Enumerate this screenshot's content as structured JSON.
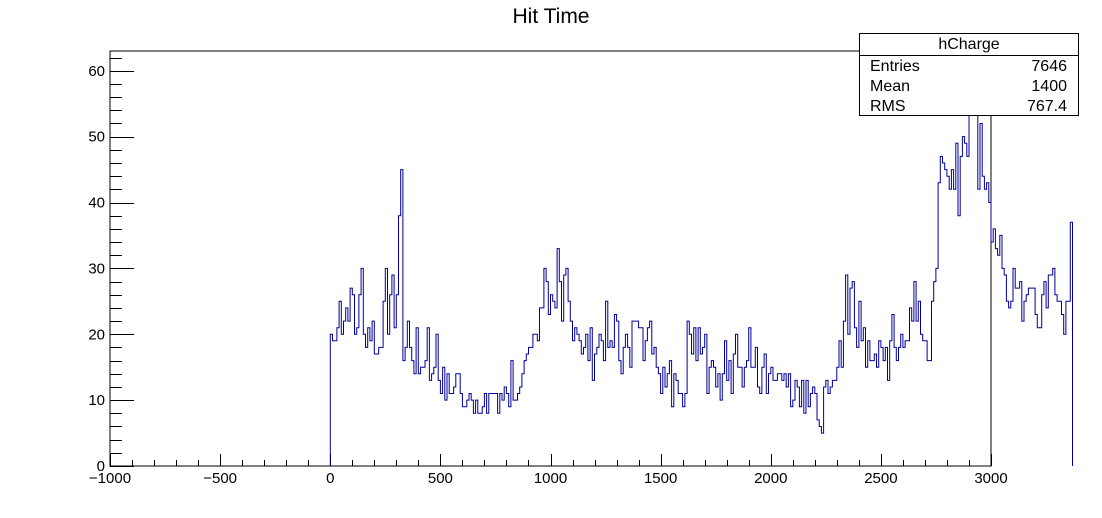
{
  "chart_data": {
    "type": "histogram",
    "title": "Hit Time",
    "xlabel": "",
    "ylabel": "",
    "xlim": [
      -1000,
      3000
    ],
    "ylim": [
      0,
      63
    ],
    "x_ticks": [
      -1000,
      -500,
      0,
      500,
      1000,
      1500,
      2000,
      2500,
      3000
    ],
    "y_ticks": [
      0,
      10,
      20,
      30,
      40,
      50,
      60
    ],
    "bin_width": 10,
    "x_start": 0,
    "series": [
      {
        "color": "#000099",
        "values": [
          20,
          19,
          19,
          21,
          25,
          20,
          22,
          24,
          22,
          27,
          26,
          20,
          21,
          26,
          30,
          20,
          18,
          21,
          19,
          22,
          17,
          17,
          18,
          18,
          25,
          30,
          20,
          26,
          29,
          21,
          26,
          38,
          45,
          16,
          18,
          22,
          18,
          16,
          14,
          21,
          14,
          15,
          15,
          16,
          21,
          13,
          14,
          15,
          20,
          13,
          11,
          15,
          10,
          14,
          11,
          11,
          12,
          14,
          14,
          11,
          9,
          9,
          10,
          11,
          10,
          8,
          10,
          8,
          8,
          9,
          11,
          8,
          11,
          11,
          11,
          11,
          8,
          11,
          10,
          12,
          11,
          9,
          16,
          10,
          10,
          11,
          12,
          14,
          16,
          17,
          18,
          18,
          20,
          20,
          19,
          24,
          24,
          30,
          28,
          23,
          26,
          25,
          24,
          33,
          28,
          22,
          29,
          30,
          25,
          22,
          19,
          21,
          20,
          19,
          17,
          18,
          20,
          16,
          21,
          13,
          17,
          18,
          20,
          19,
          16,
          25,
          18,
          19,
          18,
          23,
          22,
          16,
          14,
          18,
          20,
          18,
          15,
          22,
          22,
          22,
          21,
          21,
          16,
          19,
          21,
          22,
          17,
          18,
          15,
          14,
          11,
          15,
          12,
          14,
          16,
          9,
          14,
          13,
          11,
          11,
          9,
          11,
          22,
          20,
          17,
          21,
          16,
          21,
          17,
          18,
          20,
          11,
          15,
          16,
          15,
          12,
          14,
          10,
          14,
          19,
          13,
          16,
          11,
          17,
          20,
          15,
          15,
          12,
          15,
          16,
          21,
          15,
          15,
          18,
          12,
          11,
          15,
          17,
          11,
          14,
          15,
          13,
          13,
          14,
          14,
          13,
          14,
          12,
          14,
          9,
          10,
          13,
          12,
          9,
          13,
          8,
          13,
          9,
          11,
          12,
          11,
          7,
          6,
          5,
          12,
          13,
          11,
          12,
          13,
          13,
          15,
          19,
          15,
          22,
          29,
          20,
          27,
          28,
          21,
          18,
          25,
          19,
          21,
          15,
          19,
          16,
          16,
          17,
          15,
          19,
          18,
          16,
          18,
          13,
          19,
          23,
          18,
          16,
          18,
          20,
          18,
          19,
          19,
          24,
          22,
          28,
          22,
          25,
          20,
          19,
          19,
          16,
          16,
          25,
          28,
          30,
          43,
          47,
          46,
          45,
          44,
          42,
          45,
          42,
          49,
          38,
          47,
          50,
          49,
          47,
          54,
          60,
          55,
          58,
          42,
          52,
          44,
          42,
          43,
          40,
          34,
          36,
          33,
          32,
          35,
          30,
          29,
          25,
          24,
          25,
          30,
          27,
          27,
          28,
          22,
          25,
          26,
          27,
          27,
          27,
          23,
          21,
          21,
          26,
          28,
          24,
          29,
          29,
          30,
          26,
          25,
          25,
          23,
          20,
          25,
          25,
          37
        ]
      }
    ],
    "stats": {
      "name": "hCharge",
      "rows": [
        {
          "label": "Entries",
          "value": "7646"
        },
        {
          "label": "Mean",
          "value": "1400"
        },
        {
          "label": "RMS",
          "value": "767.4"
        }
      ]
    }
  }
}
